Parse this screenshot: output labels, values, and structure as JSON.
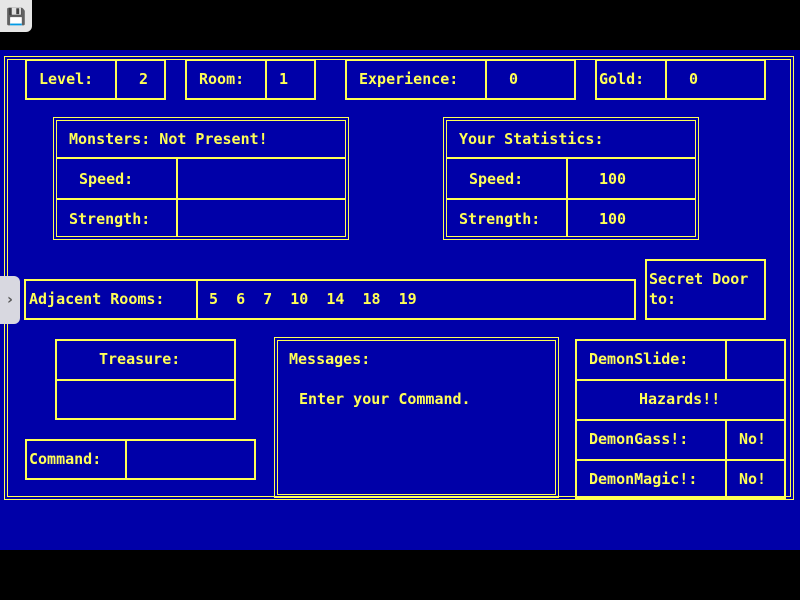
{
  "colors": {
    "background": "#0000a8",
    "text": "#ffff55"
  },
  "toolbar": {
    "save_icon": "floppy-disk-icon",
    "side_toggle_icon": "chevron-right-icon"
  },
  "status": {
    "level_label": "Level:",
    "level": "2",
    "room_label": "Room:",
    "room": "1",
    "experience_label": "Experience:",
    "experience": "0",
    "gold_label": "Gold:",
    "gold": "0"
  },
  "monsters": {
    "title": "Monsters: Not Present!",
    "speed_label": "Speed:",
    "speed": "",
    "strength_label": "Strength:",
    "strength": ""
  },
  "player": {
    "title": "Your Statistics:",
    "speed_label": "Speed:",
    "speed": "100",
    "strength_label": "Strength:",
    "strength": "100"
  },
  "adjacent": {
    "label": "Adjacent Rooms:",
    "rooms": "5  6  7  10  14  18  19"
  },
  "secret_door": {
    "label_line1": "Secret Door",
    "label_line2": "to:"
  },
  "treasure": {
    "label": "Treasure:",
    "value": ""
  },
  "command": {
    "label": "Command:",
    "value": ""
  },
  "messages": {
    "label": "Messages:",
    "text": "Enter your Command."
  },
  "hazards": {
    "demonslide_label": "DemonSlide:",
    "demonslide": "",
    "title": "Hazards!!",
    "demongass_label": "DemonGass!:",
    "demongass": "No!",
    "demonmagic_label": "DemonMagic!:",
    "demonmagic": "No!"
  }
}
